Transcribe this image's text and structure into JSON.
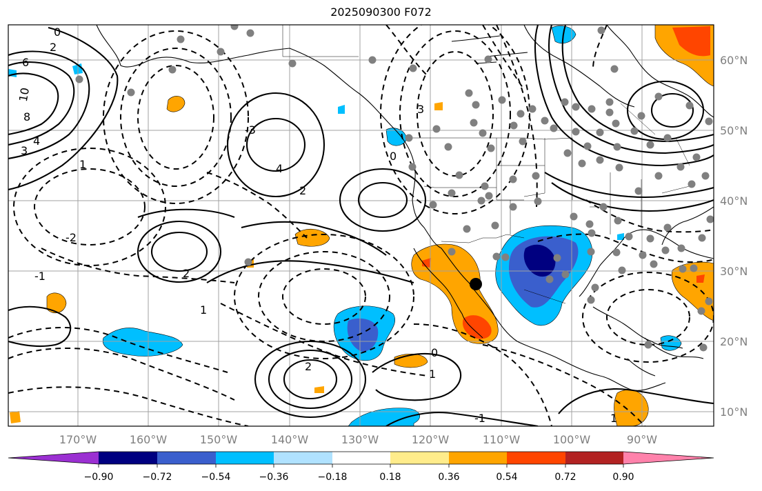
{
  "title": "2025090300 F072",
  "map": {
    "lat_labels": [
      "60°N",
      "50°N",
      "40°N",
      "30°N",
      "20°N",
      "10°N"
    ],
    "lon_labels": [
      "170°W",
      "160°W",
      "150°W",
      "140°W",
      "130°W",
      "120°W",
      "110°W",
      "100°W",
      "90°W"
    ],
    "contour_labels": [
      "0",
      "2",
      "6",
      "10",
      "8",
      "4",
      "3",
      "1",
      "-1",
      "-2",
      "-3",
      "4",
      "2",
      "0",
      "3",
      "1",
      "-1",
      "2",
      "0",
      "1",
      "2",
      "1"
    ]
  },
  "colorbar": {
    "ticks": [
      "−0.90",
      "−0.72",
      "−0.54",
      "−0.36",
      "−0.18",
      "0.18",
      "0.36",
      "0.54",
      "0.72",
      "0.90"
    ],
    "colors": [
      "#9b30d2",
      "#000080",
      "#3a5fcd",
      "#00bfff",
      "#b0e2ff",
      "#ffffff",
      "#ffec8b",
      "#ffa500",
      "#ff4500",
      "#b22222",
      "#ff82ab"
    ]
  },
  "colors": {
    "frame": "#000000",
    "grid": "#a0a0a0",
    "station": "#808080"
  }
}
